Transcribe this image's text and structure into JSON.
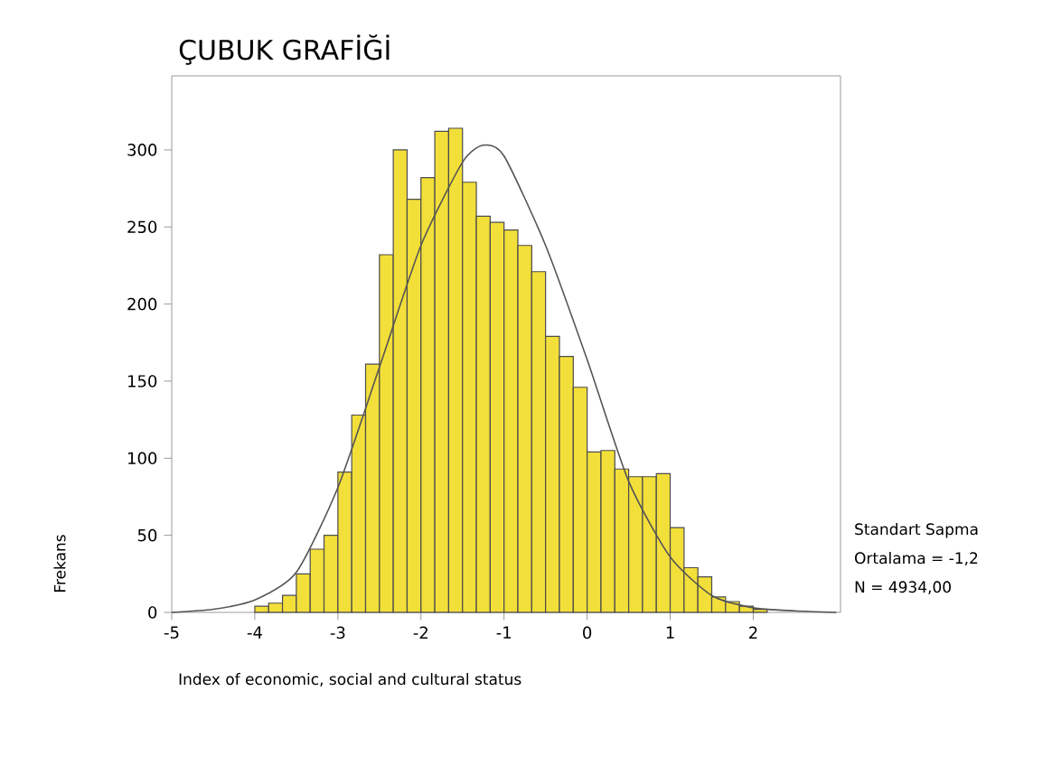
{
  "chart_data": {
    "type": "histogram",
    "title": "ÇUBUK GRAFİĞİ",
    "xlabel": "Index of economic, social and cultural status",
    "ylabel": "Frekans",
    "annotations": [
      "Standart Sapma",
      "Ortalama = -1,2",
      "N = 4934,00"
    ],
    "series": [
      {
        "type": "histogram",
        "color": "#f3df3a",
        "bins": [
          -4,
          -3.8333,
          -3.6667,
          -3.5,
          -3.3333,
          -3.1667,
          -3,
          -2.8333,
          -2.6667,
          -2.5,
          -2.3333,
          -2.1667,
          -2,
          -1.8333,
          -1.6667,
          -1.5,
          -1.3333,
          -1.1667,
          -1,
          -0.8333,
          -0.6667,
          -0.5,
          -0.3333,
          -0.1667,
          0,
          0.1667,
          0.3333,
          0.5,
          0.6667,
          0.8333,
          1,
          1.1667,
          1.3333,
          1.5,
          1.6667,
          1.8333,
          2,
          2.1667
        ],
        "values": [
          4,
          6,
          11,
          25,
          41,
          50,
          91,
          128,
          161,
          232,
          300,
          268,
          282,
          312,
          314,
          279,
          257,
          253,
          248,
          238,
          221,
          179,
          166,
          146,
          104,
          105,
          93,
          88,
          88,
          90,
          55,
          29,
          23,
          10,
          7,
          4,
          2
        ]
      },
      {
        "type": "line",
        "color": "#555555",
        "x": [
          -5,
          -4.5,
          -4,
          -3.5,
          -3,
          -2.5,
          -2,
          -1.5,
          -1.25,
          -1,
          -0.5,
          0,
          0.5,
          1,
          1.5,
          2,
          2.5,
          3
        ],
        "values": [
          0,
          2,
          8,
          26,
          81,
          159,
          238,
          292,
          303,
          296,
          238,
          164,
          85,
          36,
          11,
          3,
          1,
          0
        ]
      }
    ],
    "xlim": [
      -5,
      3.05
    ],
    "ylim": [
      0,
      348
    ],
    "xticks": [
      -5,
      -4,
      -3,
      -2,
      -1,
      0,
      1,
      2
    ],
    "yticks": [
      0,
      50,
      100,
      150,
      200,
      250,
      300
    ]
  }
}
